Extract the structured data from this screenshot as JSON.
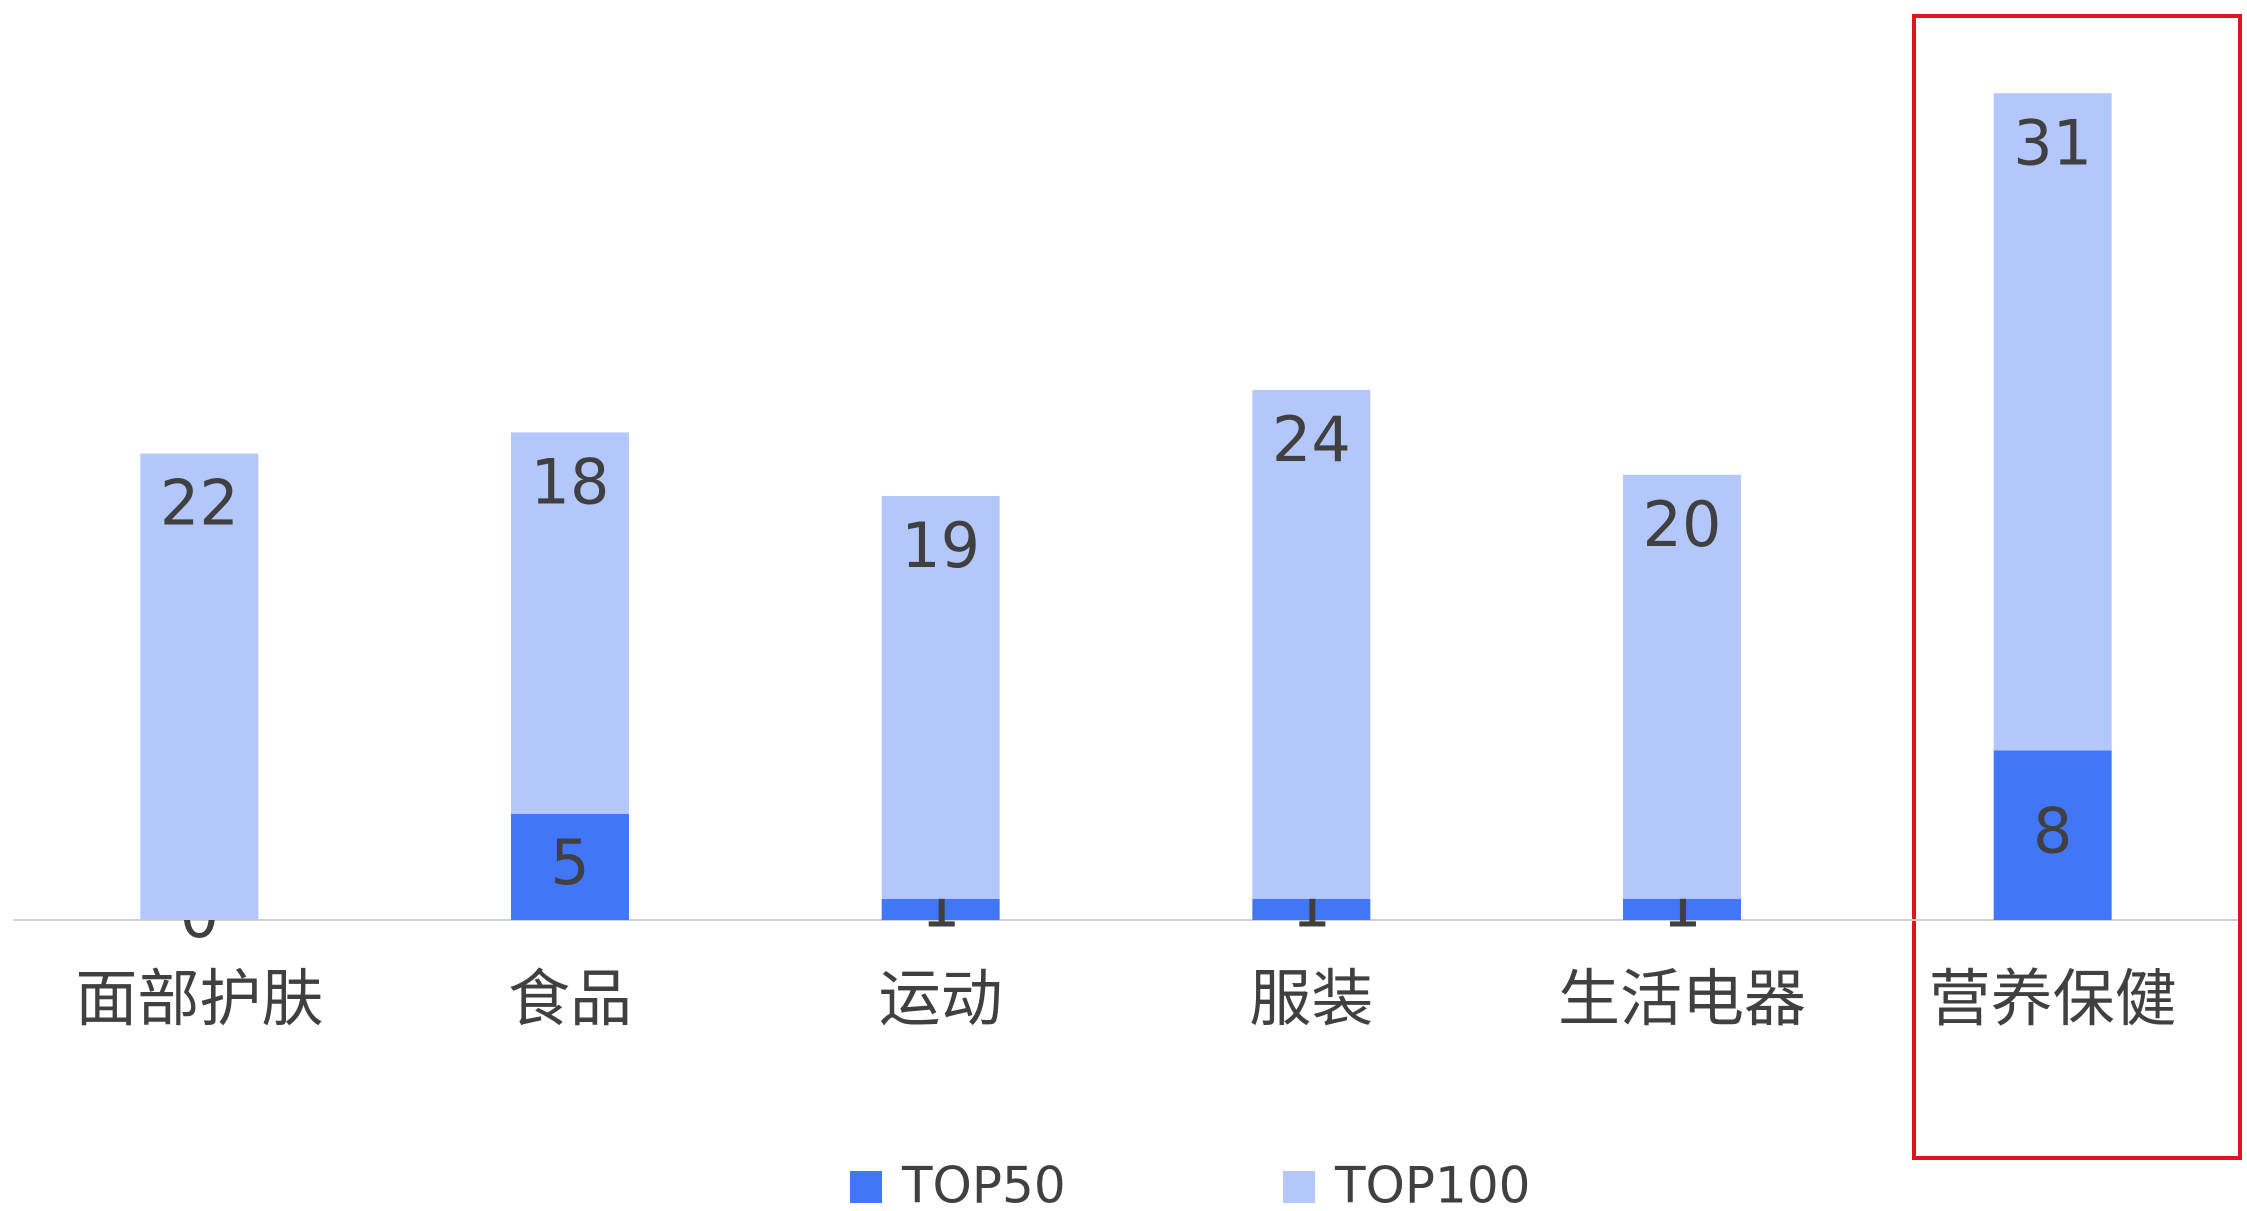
{
  "chart_data": {
    "type": "bar",
    "stacked": true,
    "categories": [
      "面部护肤",
      "食品",
      "运动",
      "服装",
      "生活电器",
      "营养保健"
    ],
    "series": [
      {
        "name": "TOP50",
        "color": "#4177f6",
        "values": [
          0,
          5,
          1,
          1,
          1,
          8
        ]
      },
      {
        "name": "TOP100",
        "color": "#b4c7fa",
        "values": [
          22,
          18,
          19,
          24,
          20,
          31
        ]
      }
    ],
    "ylim": [
      0,
      40
    ],
    "grid": false,
    "legend": "bottom"
  }
}
